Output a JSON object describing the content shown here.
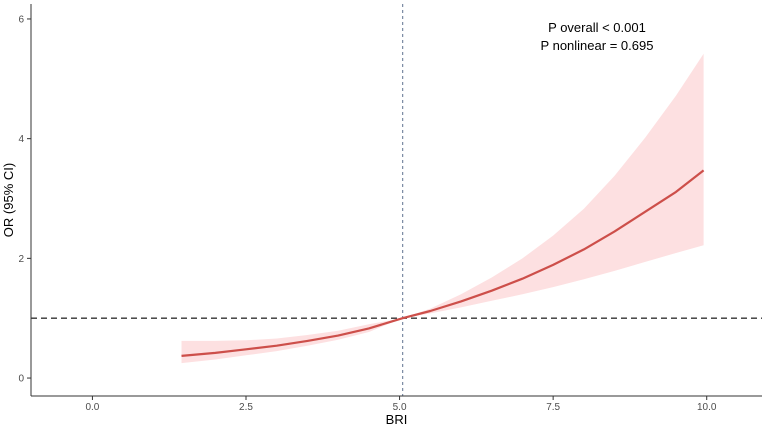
{
  "chart_data": {
    "type": "line",
    "title": "",
    "xlabel": "BRI",
    "ylabel": "OR (95% CI)",
    "xlim": [
      -1,
      10.9
    ],
    "ylim": [
      -0.3,
      6.25
    ],
    "x_ticks": [
      0.0,
      2.5,
      5.0,
      7.5,
      10.0
    ],
    "x_tick_labels": [
      "0.0",
      "2.5",
      "5.0",
      "7.5",
      "10.0"
    ],
    "y_ticks": [
      0,
      2,
      4,
      6
    ],
    "y_tick_labels": [
      "0",
      "2",
      "4",
      "6"
    ],
    "grid": false,
    "annotations": [
      "P overall < 0.001",
      "P nonlinear = 0.695"
    ],
    "reference_lines": {
      "vertical_x": 5.05,
      "horizontal_y": 1.0
    },
    "colors": {
      "line": "#cd4f4a",
      "band": "#fde0e1",
      "axis": "#333333",
      "reference": "#333333",
      "vertical_reference": "#7a8aa3"
    },
    "series": [
      {
        "x": [
          1.45,
          2.0,
          2.5,
          3.0,
          3.5,
          4.0,
          4.5,
          5.05,
          5.5,
          6.0,
          6.5,
          7.0,
          7.5,
          8.0,
          8.5,
          9.0,
          9.5,
          9.95
        ],
        "y": [
          0.37,
          0.42,
          0.48,
          0.54,
          0.62,
          0.71,
          0.83,
          1.0,
          1.12,
          1.28,
          1.46,
          1.66,
          1.89,
          2.15,
          2.45,
          2.78,
          3.11,
          3.47
        ],
        "lower": [
          0.25,
          0.31,
          0.38,
          0.45,
          0.54,
          0.64,
          0.77,
          1.0,
          1.08,
          1.18,
          1.29,
          1.4,
          1.52,
          1.65,
          1.79,
          1.94,
          2.09,
          2.22
        ],
        "upper": [
          0.62,
          0.62,
          0.63,
          0.66,
          0.72,
          0.79,
          0.9,
          1.0,
          1.16,
          1.4,
          1.68,
          2.0,
          2.38,
          2.83,
          3.38,
          4.02,
          4.72,
          5.42
        ]
      }
    ]
  }
}
